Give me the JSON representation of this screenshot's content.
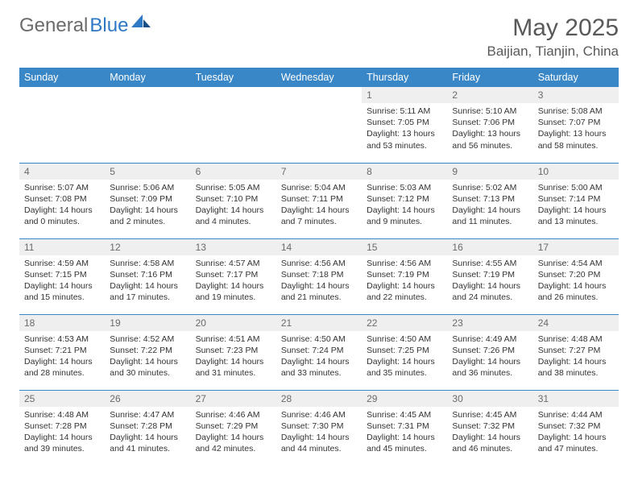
{
  "brand": {
    "part1": "General",
    "part2": "Blue"
  },
  "title": "May 2025",
  "location": "Baijian, Tianjin, China",
  "colors": {
    "header_bg": "#3a87c8",
    "header_fg": "#ffffff",
    "rule": "#3a87c8",
    "daynum_bg": "#efefef",
    "text": "#333333",
    "title_color": "#595959"
  },
  "layout": {
    "cols": 7,
    "rows": 5,
    "first_weekday_index": 4
  },
  "weekdays": [
    "Sunday",
    "Monday",
    "Tuesday",
    "Wednesday",
    "Thursday",
    "Friday",
    "Saturday"
  ],
  "days": [
    {
      "n": 1,
      "sr": "5:11 AM",
      "ss": "7:05 PM",
      "dl": "13 hours and 53 minutes."
    },
    {
      "n": 2,
      "sr": "5:10 AM",
      "ss": "7:06 PM",
      "dl": "13 hours and 56 minutes."
    },
    {
      "n": 3,
      "sr": "5:08 AM",
      "ss": "7:07 PM",
      "dl": "13 hours and 58 minutes."
    },
    {
      "n": 4,
      "sr": "5:07 AM",
      "ss": "7:08 PM",
      "dl": "14 hours and 0 minutes."
    },
    {
      "n": 5,
      "sr": "5:06 AM",
      "ss": "7:09 PM",
      "dl": "14 hours and 2 minutes."
    },
    {
      "n": 6,
      "sr": "5:05 AM",
      "ss": "7:10 PM",
      "dl": "14 hours and 4 minutes."
    },
    {
      "n": 7,
      "sr": "5:04 AM",
      "ss": "7:11 PM",
      "dl": "14 hours and 7 minutes."
    },
    {
      "n": 8,
      "sr": "5:03 AM",
      "ss": "7:12 PM",
      "dl": "14 hours and 9 minutes."
    },
    {
      "n": 9,
      "sr": "5:02 AM",
      "ss": "7:13 PM",
      "dl": "14 hours and 11 minutes."
    },
    {
      "n": 10,
      "sr": "5:00 AM",
      "ss": "7:14 PM",
      "dl": "14 hours and 13 minutes."
    },
    {
      "n": 11,
      "sr": "4:59 AM",
      "ss": "7:15 PM",
      "dl": "14 hours and 15 minutes."
    },
    {
      "n": 12,
      "sr": "4:58 AM",
      "ss": "7:16 PM",
      "dl": "14 hours and 17 minutes."
    },
    {
      "n": 13,
      "sr": "4:57 AM",
      "ss": "7:17 PM",
      "dl": "14 hours and 19 minutes."
    },
    {
      "n": 14,
      "sr": "4:56 AM",
      "ss": "7:18 PM",
      "dl": "14 hours and 21 minutes."
    },
    {
      "n": 15,
      "sr": "4:56 AM",
      "ss": "7:19 PM",
      "dl": "14 hours and 22 minutes."
    },
    {
      "n": 16,
      "sr": "4:55 AM",
      "ss": "7:19 PM",
      "dl": "14 hours and 24 minutes."
    },
    {
      "n": 17,
      "sr": "4:54 AM",
      "ss": "7:20 PM",
      "dl": "14 hours and 26 minutes."
    },
    {
      "n": 18,
      "sr": "4:53 AM",
      "ss": "7:21 PM",
      "dl": "14 hours and 28 minutes."
    },
    {
      "n": 19,
      "sr": "4:52 AM",
      "ss": "7:22 PM",
      "dl": "14 hours and 30 minutes."
    },
    {
      "n": 20,
      "sr": "4:51 AM",
      "ss": "7:23 PM",
      "dl": "14 hours and 31 minutes."
    },
    {
      "n": 21,
      "sr": "4:50 AM",
      "ss": "7:24 PM",
      "dl": "14 hours and 33 minutes."
    },
    {
      "n": 22,
      "sr": "4:50 AM",
      "ss": "7:25 PM",
      "dl": "14 hours and 35 minutes."
    },
    {
      "n": 23,
      "sr": "4:49 AM",
      "ss": "7:26 PM",
      "dl": "14 hours and 36 minutes."
    },
    {
      "n": 24,
      "sr": "4:48 AM",
      "ss": "7:27 PM",
      "dl": "14 hours and 38 minutes."
    },
    {
      "n": 25,
      "sr": "4:48 AM",
      "ss": "7:28 PM",
      "dl": "14 hours and 39 minutes."
    },
    {
      "n": 26,
      "sr": "4:47 AM",
      "ss": "7:28 PM",
      "dl": "14 hours and 41 minutes."
    },
    {
      "n": 27,
      "sr": "4:46 AM",
      "ss": "7:29 PM",
      "dl": "14 hours and 42 minutes."
    },
    {
      "n": 28,
      "sr": "4:46 AM",
      "ss": "7:30 PM",
      "dl": "14 hours and 44 minutes."
    },
    {
      "n": 29,
      "sr": "4:45 AM",
      "ss": "7:31 PM",
      "dl": "14 hours and 45 minutes."
    },
    {
      "n": 30,
      "sr": "4:45 AM",
      "ss": "7:32 PM",
      "dl": "14 hours and 46 minutes."
    },
    {
      "n": 31,
      "sr": "4:44 AM",
      "ss": "7:32 PM",
      "dl": "14 hours and 47 minutes."
    }
  ],
  "labels": {
    "sunrise": "Sunrise:",
    "sunset": "Sunset:",
    "daylight": "Daylight:"
  }
}
